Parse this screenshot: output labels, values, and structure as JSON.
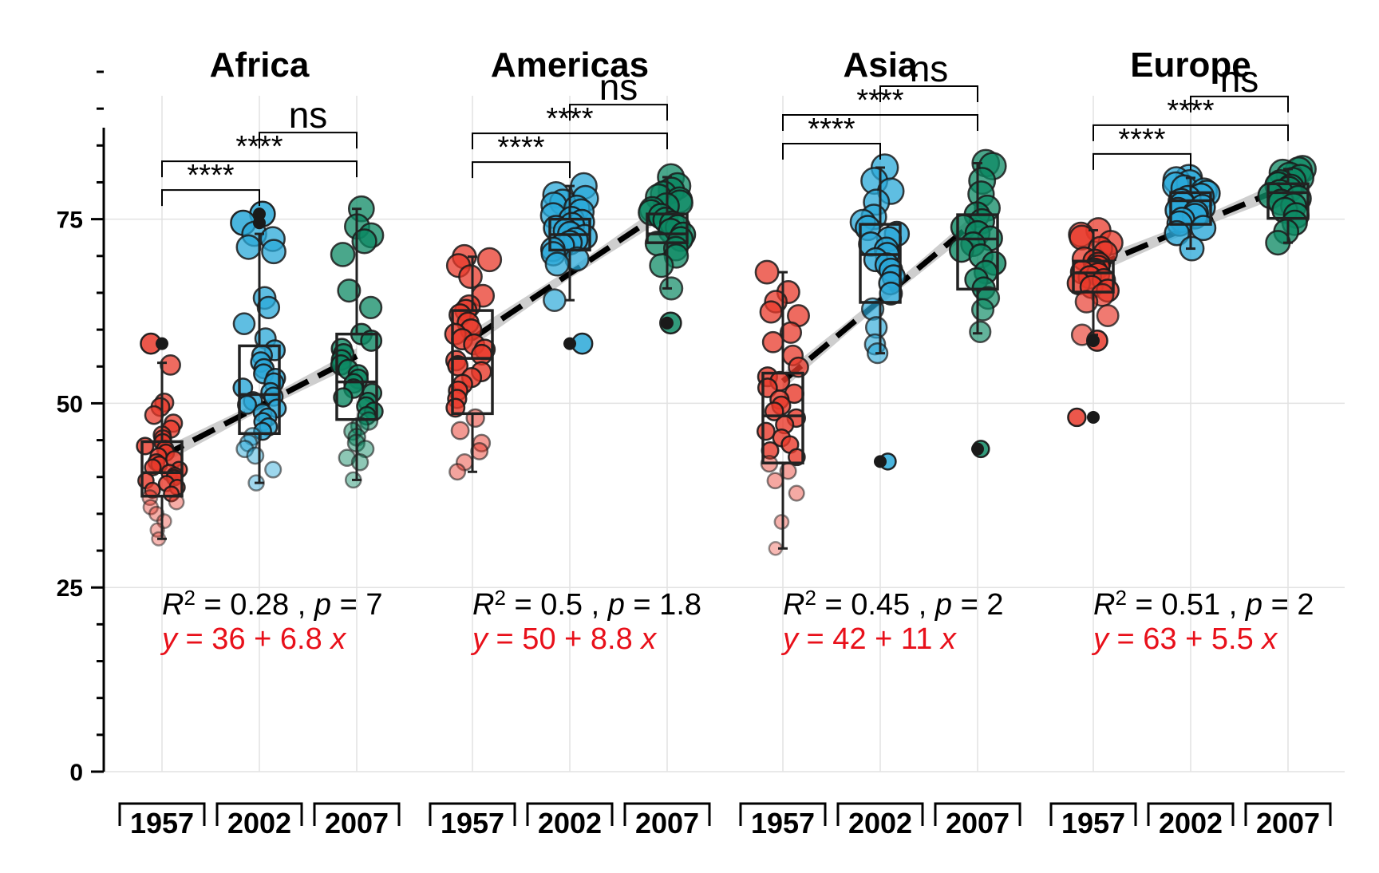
{
  "chart_data": {
    "type": "box-jitter-facets",
    "ylim": [
      0,
      95
    ],
    "yticks": [
      0,
      25,
      50,
      75
    ],
    "grid": true,
    "legend": "none",
    "group_colors": {
      "1957": "#e8392b",
      "2002": "#2aa8d8",
      "2007": "#0e8a64"
    },
    "facets": [
      {
        "name": "Africa",
        "categories": [
          "1957",
          "2002",
          "2007"
        ],
        "boxes": [
          {
            "q1": 37.4,
            "median": 40.6,
            "q3": 44.8,
            "lo": 31.6,
            "hi": 55.5
          },
          {
            "q1": 45.9,
            "median": 51.2,
            "q3": 57.8,
            "lo": 39.2,
            "hi": 73.0
          },
          {
            "q1": 47.8,
            "median": 52.9,
            "q3": 59.4,
            "lo": 39.6,
            "hi": 76.4
          }
        ],
        "points": [
          [
            58.1,
            55.2,
            50.1,
            49.5,
            48.4,
            47.3,
            46.5,
            45.7,
            45.2,
            44.7,
            44.2,
            43.8,
            43.3,
            42.8,
            42.4,
            42.0,
            41.7,
            41.3,
            41.0,
            40.6,
            40.2,
            39.9,
            39.5,
            39.1,
            38.6,
            38.2,
            37.7,
            37.2,
            36.6,
            35.9,
            35.0,
            34.0,
            32.8,
            31.6
          ],
          [
            75.7,
            74.5,
            73.0,
            72.3,
            71.2,
            70.6,
            64.3,
            63.0,
            60.8,
            58.8,
            57.2,
            56.5,
            55.6,
            54.7,
            54.0,
            53.4,
            52.8,
            52.1,
            51.5,
            50.9,
            50.3,
            49.8,
            49.3,
            48.7,
            48.1,
            47.5,
            46.8,
            46.2,
            45.5,
            44.6,
            43.8,
            42.9,
            41.0,
            39.2
          ],
          [
            76.4,
            74.0,
            72.8,
            72.0,
            70.2,
            65.3,
            63.0,
            59.4,
            58.5,
            57.4,
            56.7,
            55.9,
            55.2,
            54.6,
            53.9,
            53.3,
            52.7,
            52.0,
            51.4,
            50.8,
            50.2,
            49.6,
            48.9,
            48.3,
            47.6,
            46.9,
            46.2,
            45.4,
            44.6,
            43.8,
            42.6,
            42.0,
            39.6
          ]
        ],
        "sig_labels": [
          "****",
          "****",
          "ns"
        ],
        "r2_label": "R",
        "r2_eq": " = 0.28 , ",
        "p_label": "p",
        "p_eq": " = 7",
        "eq_text": "= 36 + 6.8 ",
        "fit": {
          "intercept": 36,
          "slope": 6.8
        }
      },
      {
        "name": "Americas",
        "categories": [
          "1957",
          "2002",
          "2007"
        ],
        "boxes": [
          {
            "q1": 48.6,
            "median": 56.1,
            "q3": 62.6,
            "lo": 40.7,
            "hi": 69.9
          },
          {
            "q1": 70.8,
            "median": 72.9,
            "q3": 75.0,
            "lo": 64.0,
            "hi": 79.5
          },
          {
            "q1": 71.8,
            "median": 73.0,
            "q3": 75.7,
            "lo": 65.6,
            "hi": 80.7
          }
        ],
        "points": [
          [
            69.9,
            69.5,
            68.7,
            67.2,
            64.6,
            63.2,
            62.6,
            62.0,
            60.9,
            60.0,
            59.4,
            58.7,
            58.0,
            57.3,
            56.6,
            55.8,
            55.1,
            54.3,
            53.5,
            52.6,
            51.7,
            50.6,
            49.4,
            48.0,
            46.3,
            44.6,
            43.5,
            42.0,
            40.7
          ],
          [
            79.5,
            78.3,
            77.8,
            77.3,
            76.9,
            76.5,
            76.0,
            75.5,
            75.0,
            74.6,
            74.2,
            73.8,
            73.4,
            73.0,
            72.6,
            72.2,
            71.8,
            71.4,
            70.9,
            70.3,
            69.6,
            68.9,
            64.0,
            58.1
          ],
          [
            80.7,
            79.5,
            78.9,
            78.4,
            78.0,
            77.6,
            77.2,
            76.8,
            76.3,
            75.9,
            75.4,
            74.9,
            74.4,
            73.9,
            73.4,
            72.9,
            72.3,
            71.7,
            71.0,
            70.0,
            68.7,
            65.6,
            60.9
          ]
        ],
        "sig_labels": [
          "****",
          "****",
          "ns"
        ],
        "r2_label": "R",
        "r2_eq": " = 0.5 , ",
        "p_label": "p",
        "p_eq": " = 1.8",
        "eq_text": "= 50 + 8.8 ",
        "fit": {
          "intercept": 50,
          "slope": 8.8
        }
      },
      {
        "name": "Asia",
        "categories": [
          "1957",
          "2002",
          "2007"
        ],
        "boxes": [
          {
            "q1": 41.9,
            "median": 48.3,
            "q3": 54.1,
            "lo": 30.3,
            "hi": 67.8
          },
          {
            "q1": 63.7,
            "median": 70.2,
            "q3": 74.3,
            "lo": 56.8,
            "hi": 82.0
          },
          {
            "q1": 65.5,
            "median": 72.3,
            "q3": 75.6,
            "lo": 59.5,
            "hi": 82.6
          }
        ],
        "points": [
          [
            67.8,
            65.1,
            63.8,
            62.4,
            61.9,
            59.6,
            58.3,
            56.5,
            54.9,
            53.6,
            53.0,
            52.1,
            51.3,
            50.5,
            49.7,
            48.9,
            48.0,
            47.1,
            46.2,
            45.3,
            44.4,
            43.6,
            42.7,
            41.8,
            40.8,
            39.5,
            37.8,
            33.9,
            30.3
          ],
          [
            82.0,
            80.2,
            78.8,
            77.3,
            75.3,
            74.6,
            73.8,
            73.0,
            72.3,
            71.6,
            70.9,
            70.2,
            69.5,
            68.8,
            68.1,
            67.2,
            66.3,
            64.9,
            62.8,
            60.3,
            58.0,
            56.8,
            42.1
          ],
          [
            82.6,
            82.2,
            80.2,
            78.4,
            76.5,
            75.6,
            74.7,
            73.9,
            73.1,
            72.4,
            71.6,
            70.8,
            70.0,
            69.0,
            67.8,
            66.8,
            65.6,
            64.3,
            62.7,
            59.7,
            43.8
          ]
        ],
        "sig_labels": [
          "****",
          "****",
          "ns"
        ],
        "r2_label": "R",
        "r2_eq": " = 0.45 , ",
        "p_label": "p",
        "p_eq": " = 2",
        "eq_text": "= 42 + 11 ",
        "fit": {
          "intercept": 42,
          "slope": 11
        }
      },
      {
        "name": "Europe",
        "categories": [
          "1957",
          "2002",
          "2007"
        ],
        "boxes": [
          {
            "q1": 65.1,
            "median": 67.7,
            "q3": 69.3,
            "lo": 59.3,
            "hi": 73.5
          },
          {
            "q1": 74.3,
            "median": 77.5,
            "q3": 78.6,
            "lo": 71.0,
            "hi": 80.6
          },
          {
            "q1": 75.1,
            "median": 78.6,
            "q3": 79.8,
            "lo": 71.8,
            "hi": 81.8
          }
        ],
        "points": [
          [
            73.5,
            72.9,
            72.5,
            71.8,
            71.0,
            70.4,
            69.6,
            69.3,
            68.9,
            68.5,
            68.1,
            67.8,
            67.5,
            67.1,
            66.7,
            66.3,
            65.8,
            65.3,
            64.7,
            63.8,
            61.9,
            59.3,
            58.5,
            48.1
          ],
          [
            80.6,
            80.3,
            79.9,
            79.6,
            79.2,
            78.8,
            78.5,
            78.1,
            77.8,
            77.4,
            77.0,
            76.6,
            76.2,
            75.8,
            75.4,
            74.9,
            74.4,
            73.8,
            73.1,
            71.0
          ],
          [
            81.8,
            81.6,
            81.3,
            80.9,
            80.6,
            80.2,
            79.9,
            79.6,
            79.3,
            79.0,
            78.6,
            78.2,
            77.8,
            77.3,
            76.8,
            76.2,
            75.5,
            74.5,
            73.3,
            71.8
          ]
        ],
        "sig_labels": [
          "****",
          "****",
          "ns"
        ],
        "r2_label": "R",
        "r2_eq": " = 0.51 , ",
        "p_label": "p",
        "p_eq": " = 2",
        "eq_text": "= 63 + 5.5 ",
        "fit": {
          "intercept": 63,
          "slope": 5.5
        }
      }
    ]
  },
  "labels": {
    "sup_2": "2",
    "eq_y": "y",
    "eq_x": "x"
  }
}
